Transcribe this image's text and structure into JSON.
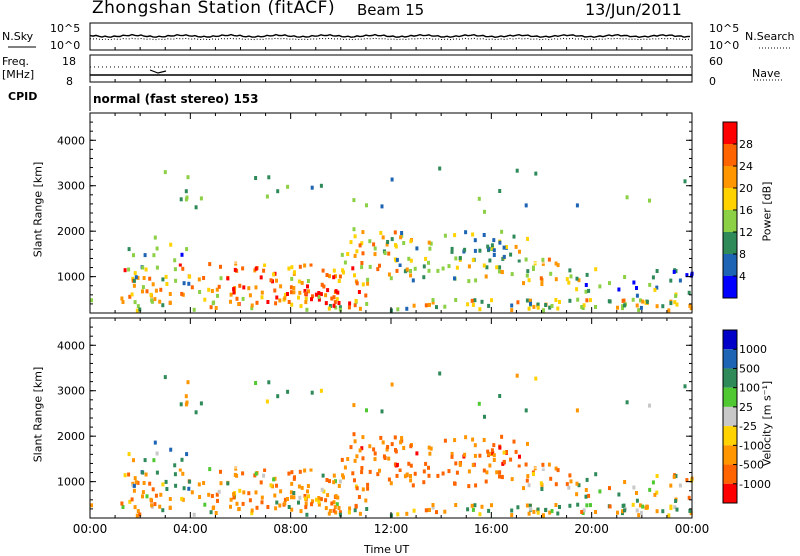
{
  "header": {
    "title": "Zhongshan Station (fitACF)",
    "beam": "Beam 15",
    "date": "13/Jun/2011"
  },
  "nsky_panel": {
    "left_label": "N.Sky",
    "left_ticks": [
      "10^5",
      "10^0"
    ],
    "right_ticks": [
      "10^5",
      "10^0"
    ],
    "right_label": "N.Search"
  },
  "freq_panel": {
    "left_label_1": "Freq.",
    "left_label_2": "[MHz]",
    "left_ticks": [
      "18",
      "8"
    ],
    "right_ticks": [
      "60",
      "0"
    ],
    "right_label": "Nave"
  },
  "cpid_panel": {
    "label": "CPID",
    "text": "normal (fast stereo) 153"
  },
  "chart_data": [
    {
      "type": "heatmap",
      "name": "power",
      "ylabel": "Slant Range [km]",
      "xlabel": "",
      "xlim": [
        0,
        24
      ],
      "ylim": [
        200,
        4600
      ],
      "yticks": [
        "1000",
        "2000",
        "3000",
        "4000"
      ],
      "ytick_values": [
        1000,
        2000,
        3000,
        4000
      ],
      "colorbar": {
        "label": "Power [dB]",
        "ticks": [
          "4",
          "8",
          "12",
          "16",
          "20",
          "24",
          "28"
        ],
        "tick_values": [
          4,
          8,
          12,
          16,
          20,
          24,
          28
        ],
        "range": [
          0,
          32
        ],
        "colors": [
          "#0000ff",
          "#1e64b4",
          "#2f8a5a",
          "#8cd046",
          "#ffd200",
          "#ff9600",
          "#ff6400",
          "#ff0000"
        ]
      }
    },
    {
      "type": "heatmap",
      "name": "velocity",
      "ylabel": "Slant Range [km]",
      "xlabel": "Time UT",
      "xlim": [
        0,
        24
      ],
      "ylim": [
        200,
        4600
      ],
      "yticks": [
        "1000",
        "2000",
        "3000",
        "4000"
      ],
      "ytick_values": [
        1000,
        2000,
        3000,
        4000
      ],
      "xticks": [
        "00:00",
        "04:00",
        "08:00",
        "12:00",
        "16:00",
        "20:00",
        "00:00"
      ],
      "xtick_values": [
        0,
        4,
        8,
        12,
        16,
        20,
        24
      ],
      "colorbar": {
        "label": "Velocity [m s⁻¹]",
        "ticks": [
          "1000",
          "500",
          "100",
          "25",
          "-25",
          "-100",
          "-500",
          "-1000"
        ],
        "colors": [
          "#0000c8",
          "#1e64b4",
          "#2f8a5a",
          "#50c832",
          "#c8c8c8",
          "#ffd200",
          "#ff9600",
          "#ff6400",
          "#ff0000"
        ]
      }
    }
  ]
}
